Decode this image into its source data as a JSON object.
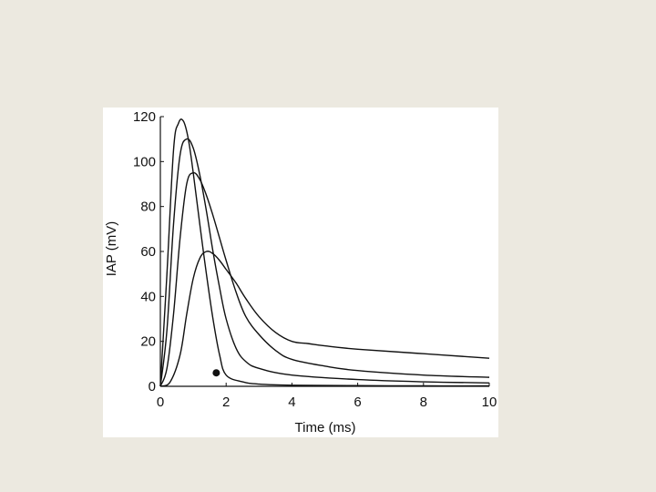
{
  "chart_data": {
    "type": "line",
    "title": "",
    "xlabel": "Time (ms)",
    "ylabel": "IAP (mV)",
    "xlim": [
      0,
      10
    ],
    "ylim": [
      0,
      120
    ],
    "xticks": [
      0,
      2,
      4,
      6,
      8,
      10
    ],
    "yticks": [
      0,
      20,
      40,
      60,
      80,
      100,
      120
    ],
    "grid": false,
    "legend": "none",
    "line_color": "#111111",
    "series": [
      {
        "x": [
          0,
          0.2,
          0.4,
          0.55,
          0.7,
          0.85,
          1.0,
          1.2,
          1.4,
          1.6,
          1.8,
          2.0,
          2.5,
          3,
          4,
          6,
          8,
          10
        ],
        "y": [
          0,
          50,
          105,
          117,
          118,
          110,
          95,
          72,
          50,
          30,
          14,
          5,
          2,
          1,
          0.5,
          0.3,
          0.2,
          0.2
        ]
      },
      {
        "x": [
          0,
          0.2,
          0.4,
          0.6,
          0.8,
          1.0,
          1.2,
          1.4,
          1.6,
          1.8,
          2.0,
          2.3,
          2.6,
          3,
          4,
          6,
          8,
          10
        ],
        "y": [
          0,
          25,
          72,
          103,
          110,
          106,
          94,
          78,
          60,
          44,
          30,
          17,
          11,
          8,
          5,
          3,
          2,
          1.5
        ]
      },
      {
        "x": [
          0,
          0.2,
          0.4,
          0.6,
          0.8,
          1.0,
          1.2,
          1.4,
          1.6,
          1.8,
          2.0,
          2.3,
          2.6,
          3,
          3.5,
          4,
          5,
          6,
          8,
          10
        ],
        "y": [
          0,
          8,
          32,
          66,
          90,
          95,
          92,
          85,
          76,
          66,
          56,
          42,
          31,
          23,
          16,
          12,
          9,
          7,
          5,
          4
        ]
      },
      {
        "x": [
          0,
          0.3,
          0.6,
          0.8,
          1.0,
          1.2,
          1.4,
          1.6,
          1.8,
          2.0,
          2.3,
          2.6,
          3,
          3.5,
          4,
          4.5,
          5,
          6,
          8,
          10
        ],
        "y": [
          0,
          2,
          14,
          32,
          48,
          57,
          60,
          59,
          56,
          52,
          46,
          39,
          31,
          24,
          20,
          19,
          18,
          16.5,
          14.5,
          12.5
        ]
      }
    ],
    "marker": {
      "x": 1.7,
      "y": 6
    }
  }
}
